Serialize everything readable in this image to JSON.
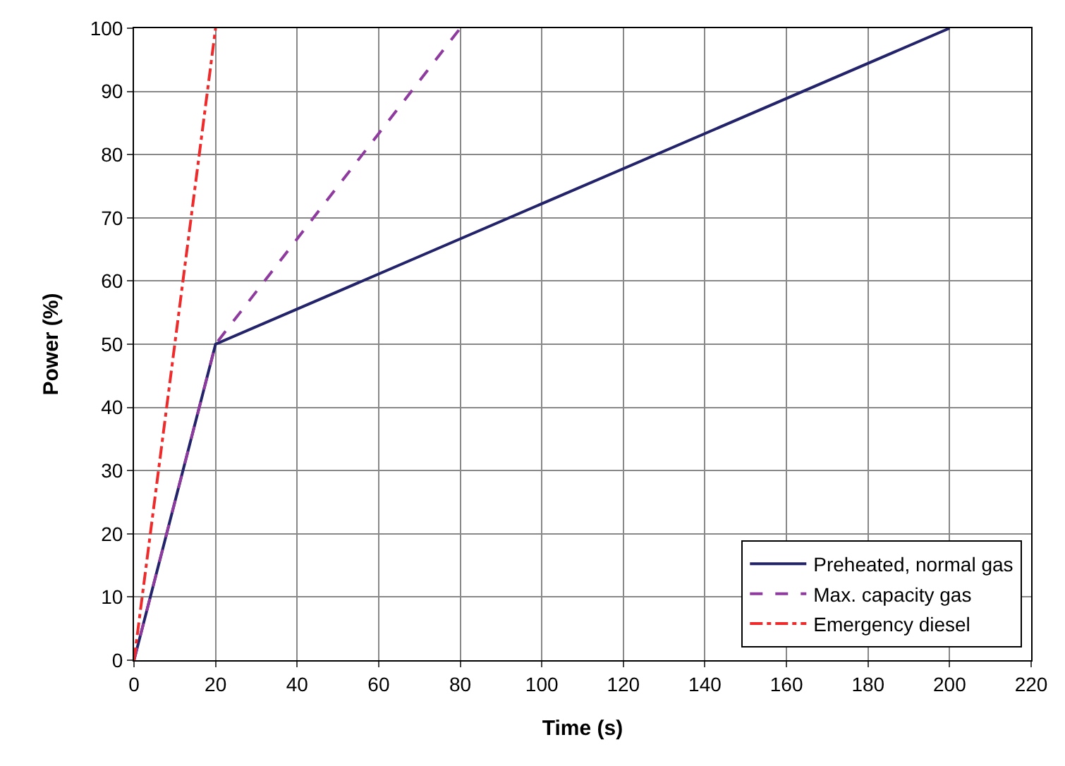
{
  "chart_data": {
    "type": "line",
    "xlabel": "Time (s)",
    "ylabel": "Power (%)",
    "xlim": [
      0,
      220
    ],
    "xticks": [
      0,
      20,
      40,
      60,
      80,
      100,
      120,
      140,
      160,
      180,
      200,
      220
    ],
    "ylim": [
      0,
      100
    ],
    "yticks": [
      0,
      10,
      20,
      30,
      40,
      50,
      60,
      70,
      80,
      90,
      100
    ],
    "grid": true,
    "legend": "bottom right",
    "marker": "none",
    "series": [
      {
        "name": "Preheated, normal gas",
        "color": "#23236b",
        "x": [
          0,
          20,
          200
        ],
        "values": [
          0,
          50,
          100
        ],
        "line_style": "solid"
      },
      {
        "name": "Max. capacity gas",
        "color": "#8e3a9e",
        "x": [
          0,
          20,
          80
        ],
        "values": [
          0,
          50,
          100
        ],
        "line_style": "dashed"
      },
      {
        "name": "Emergency diesel",
        "color": "#ee2a2a",
        "x": [
          0,
          20
        ],
        "values": [
          0,
          100
        ],
        "line_style": "dashdot"
      }
    ]
  }
}
